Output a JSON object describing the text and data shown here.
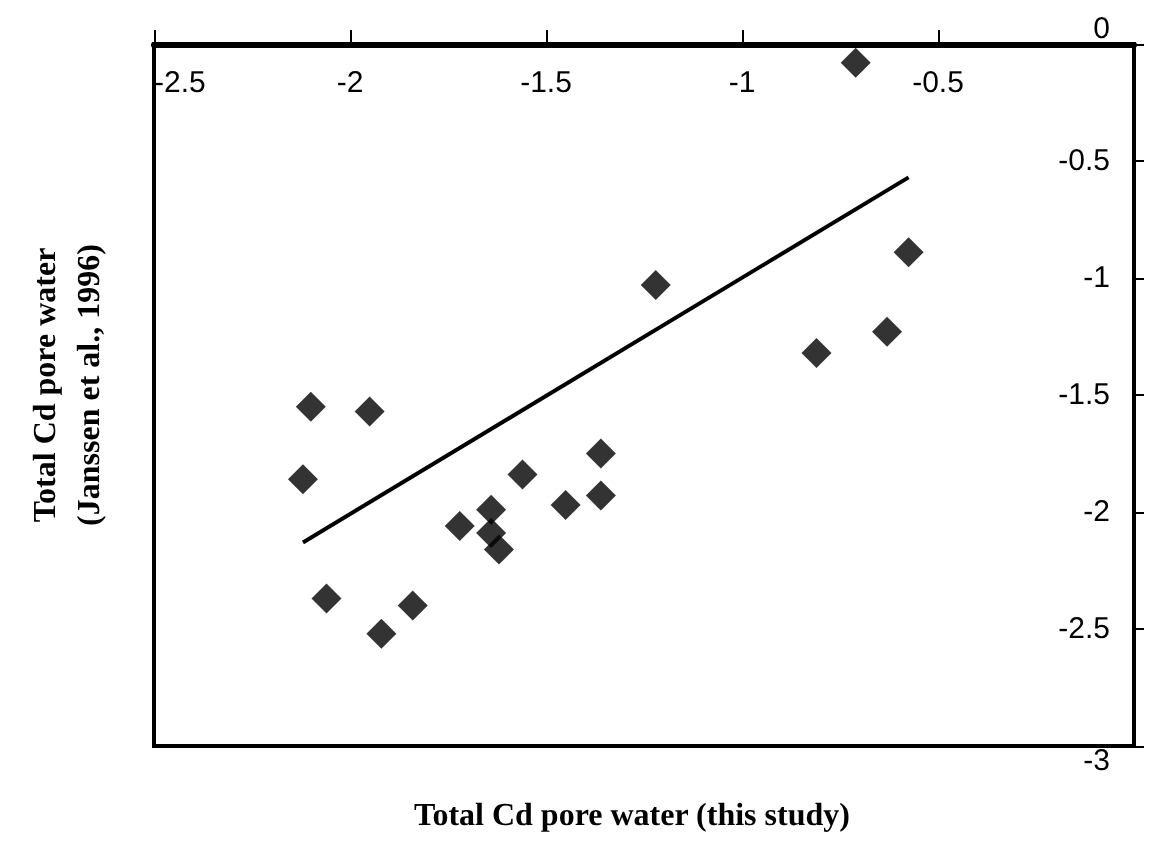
{
  "chart_data": {
    "type": "scatter",
    "xlabel": "Total Cd pore water (this study)",
    "ylabel": "Total Cd pore water\n(Janssen et al., 1996)",
    "xlim": [
      -2.5,
      0
    ],
    "xticks": [
      -2.5,
      -2,
      -1.5,
      -1,
      -0.5
    ],
    "ylim": [
      -3,
      0
    ],
    "yticks": [
      -3,
      -2.5,
      -2,
      -1.5,
      -1,
      -0.5,
      0
    ],
    "grid": false,
    "series": [
      {
        "color": "#000000",
        "marker": "diamond",
        "x": [
          -0.71,
          -1.22,
          -0.575,
          -0.63,
          -0.81,
          -2.1,
          -1.95,
          -2.12,
          -1.56,
          -1.36,
          -1.36,
          -1.45,
          -1.72,
          -1.64,
          -1.64,
          -1.62,
          -2.06,
          -1.84,
          -1.92
        ],
        "values": [
          -0.08,
          -1.03,
          -0.89,
          -1.23,
          -1.32,
          -1.55,
          -1.57,
          -1.86,
          -1.84,
          -1.75,
          -1.93,
          -1.97,
          -2.06,
          -1.99,
          -2.09,
          -2.16,
          -2.37,
          -2.4,
          -2.52
        ]
      },
      {
        "type": "line",
        "color": "#000000",
        "marker": "none",
        "x": [
          -2.12,
          -0.575
        ],
        "values": [
          -2.13,
          -0.57
        ]
      }
    ]
  }
}
